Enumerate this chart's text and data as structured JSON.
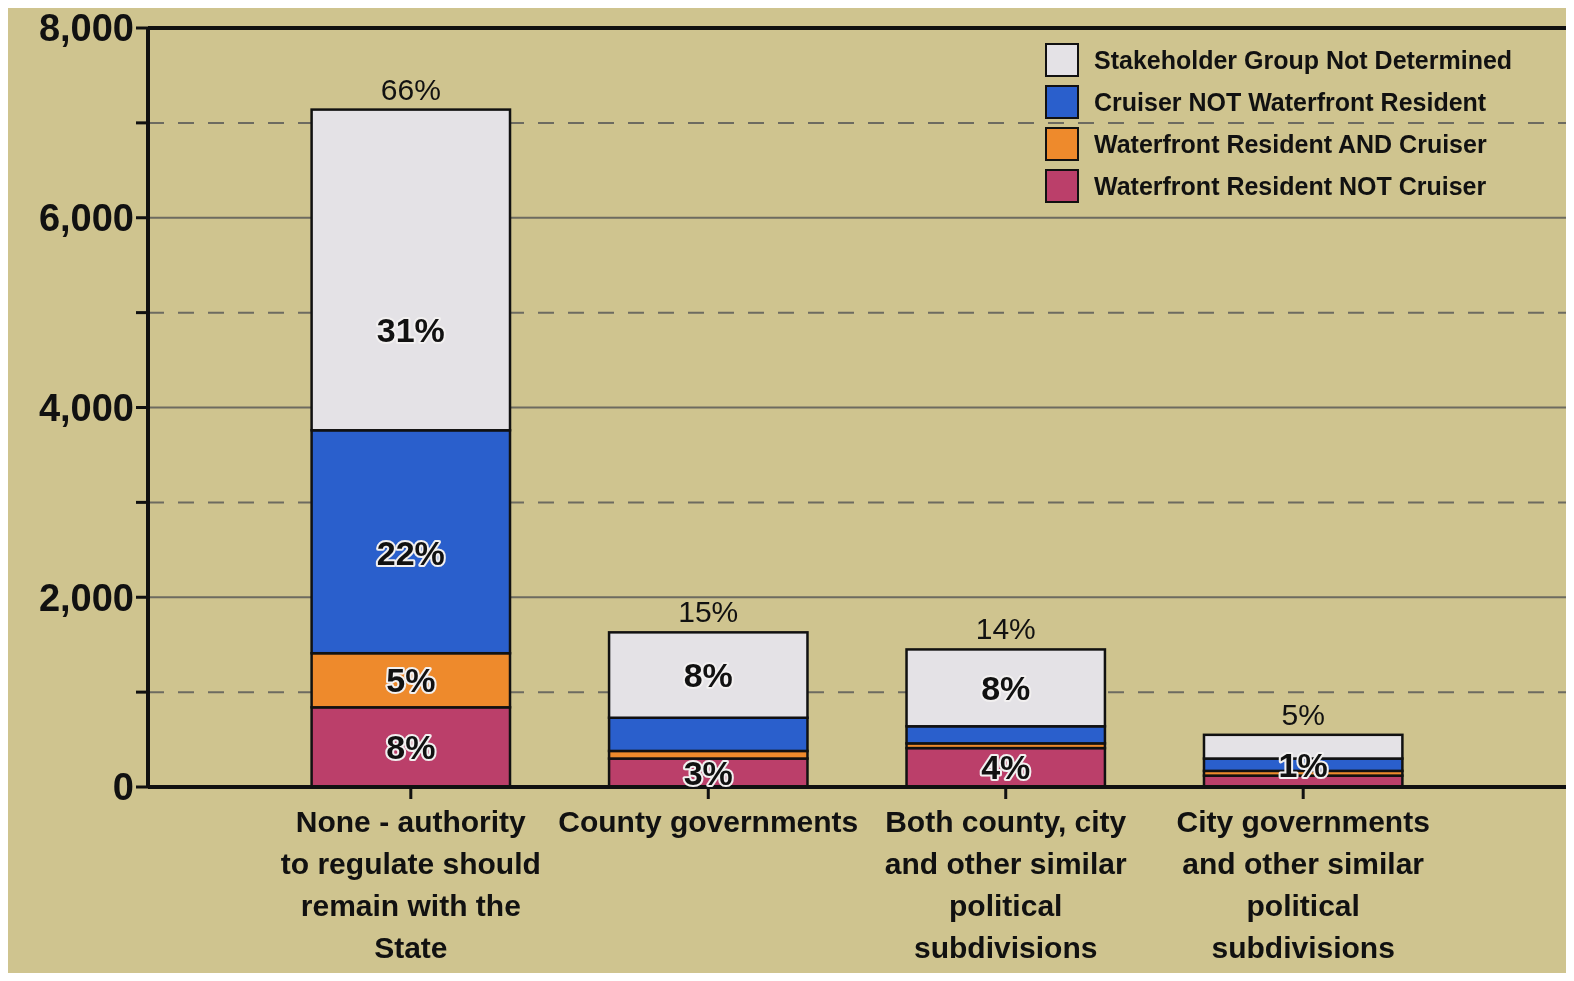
{
  "chart_data": {
    "type": "bar",
    "stacked": true,
    "categories": [
      "None - authority to regulate should remain with the State",
      "County governments",
      "Both county, city and other similar political subdivisions",
      "City governments and other similar political subdivisions"
    ],
    "series": [
      {
        "name": "Waterfront Resident NOT Cruiser",
        "color": "#bb3f6a",
        "values": [
          840,
          300,
          410,
          120
        ]
      },
      {
        "name": "Waterfront Resident AND Cruiser",
        "color": "#ee8a2c",
        "values": [
          570,
          80,
          50,
          50
        ]
      },
      {
        "name": "Cruiser NOT Waterfront Resident",
        "color": "#2a5fcc",
        "values": [
          2350,
          350,
          180,
          130
        ]
      },
      {
        "name": "Stakeholder Group Not Determined",
        "color": "#e4e2e6",
        "values": [
          3380,
          900,
          810,
          250
        ]
      }
    ],
    "annotations": [
      {
        "text": "8%",
        "x": "None - authority to regulate should remain with the State",
        "y": 0
      },
      {
        "text": "3%",
        "x": "County governments",
        "y": 0
      },
      {
        "text": "4%",
        "x": "Both county, city and other similar political subdivisions",
        "y": 0
      },
      {
        "text": "5%",
        "x": "None - authority to regulate should remain with the State",
        "y": 840
      },
      {
        "text": "22%",
        "x": "None - authority to regulate should remain with the State",
        "y": 1410
      },
      {
        "text": "1%",
        "x": "City governments and other similar political subdivisions",
        "y": 170
      },
      {
        "text": "31%",
        "x": "None - authority to regulate should remain with the State",
        "y": 3760
      },
      {
        "text": "8%",
        "x": "County governments",
        "y": 730
      },
      {
        "text": "8%",
        "x": "Both county, city and other similar political subdivisions",
        "y": 640
      },
      {
        "text": "66%",
        "x": "None - authority to regulate should remain with the State",
        "y": 7140
      },
      {
        "text": "15%",
        "x": "County governments",
        "y": 1630
      },
      {
        "text": "14%",
        "x": "Both county, city and other similar political subdivisions",
        "y": 1450
      },
      {
        "text": "5%",
        "x": "City governments and other similar political subdivisions",
        "y": 550
      }
    ],
    "ylim": [
      0,
      8000
    ],
    "yticks": [
      {
        "value": 0,
        "label": "0"
      },
      {
        "value": 1000,
        "label": null
      },
      {
        "value": 2000,
        "label": "2,000"
      },
      {
        "value": 3000,
        "label": null
      },
      {
        "value": 4000,
        "label": "4,000"
      },
      {
        "value": 5000,
        "label": null
      },
      {
        "value": 6000,
        "label": "6,000"
      },
      {
        "value": 7000,
        "label": null
      },
      {
        "value": 8000,
        "label": "8,000"
      }
    ],
    "grid": "y",
    "legend": "top right"
  }
}
